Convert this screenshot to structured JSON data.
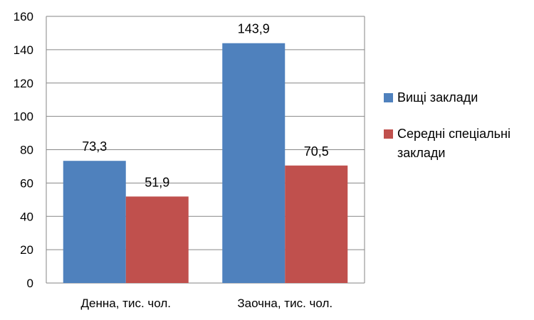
{
  "chart_data": {
    "type": "bar",
    "categories": [
      "Денна, тис. чол.",
      "Заочна, тис. чол."
    ],
    "series": [
      {
        "name": "Вищі заклади",
        "values": [
          73.3,
          143.9
        ],
        "labels": [
          "73,3",
          "143,9"
        ],
        "color": "#4F81BD"
      },
      {
        "name": "Середні спеціальні заклади",
        "values": [
          51.9,
          70.5
        ],
        "labels": [
          "51,9",
          "70,5"
        ],
        "color": "#C0504D"
      }
    ],
    "ylim": [
      0,
      160
    ],
    "yticks": [
      0,
      20,
      40,
      60,
      80,
      100,
      120,
      140,
      160
    ],
    "grid": true,
    "legend_position": "right"
  }
}
